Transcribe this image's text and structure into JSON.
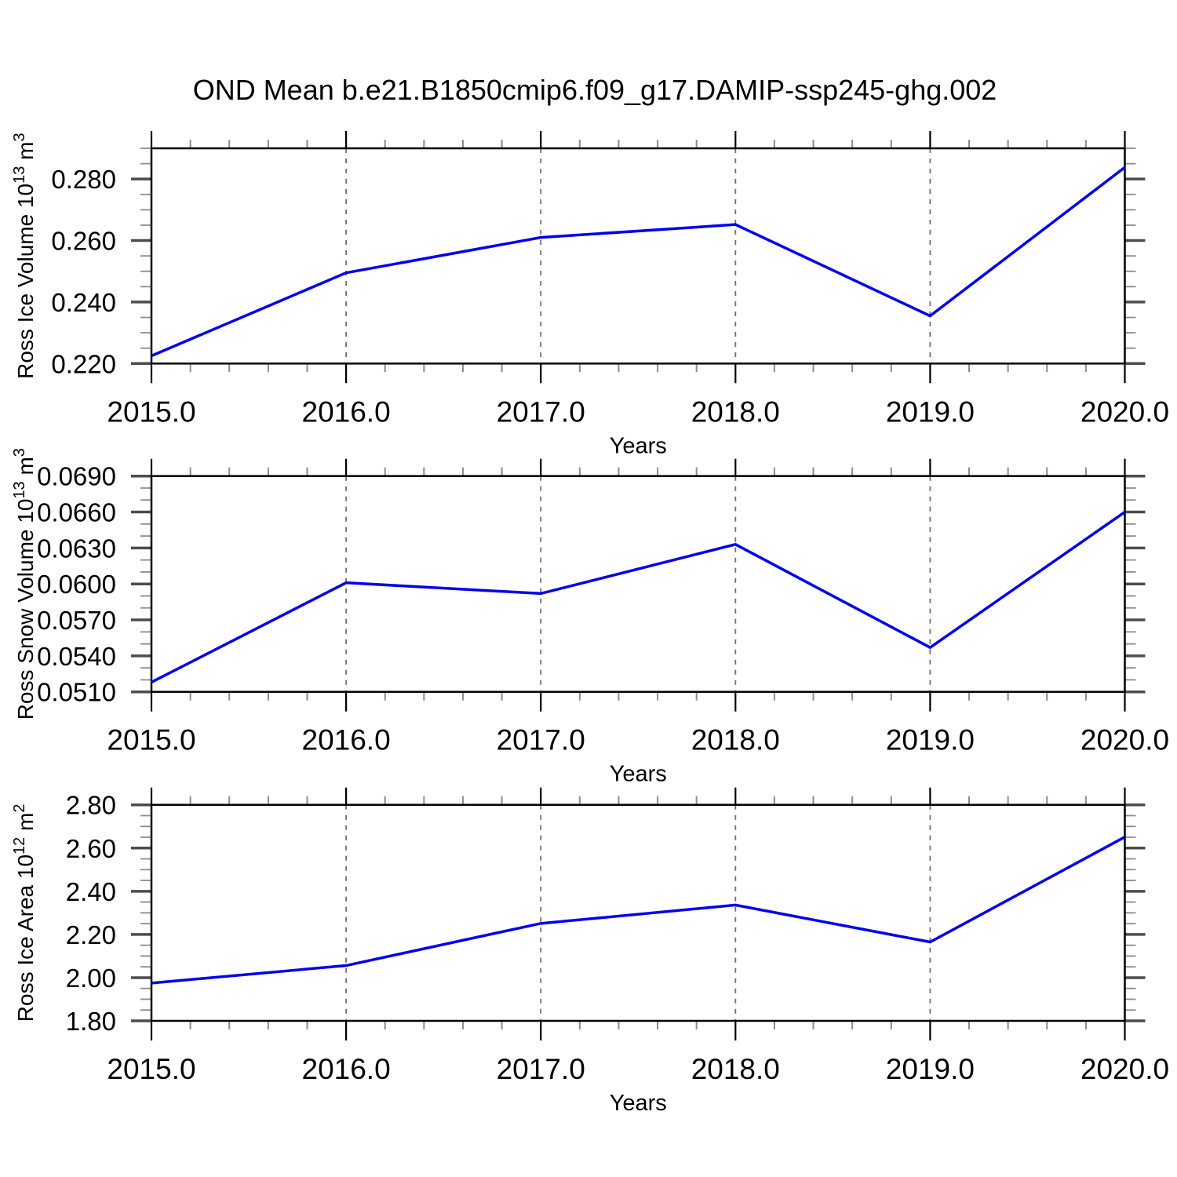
{
  "title": "OND Mean b.e21.B1850cmip6.f09_g17.DAMIP-ssp245-ghg.002",
  "colors": {
    "line": "#0000ee",
    "grid": "#707070",
    "frame": "#000000",
    "major_tick": "#4d4d4d",
    "minor_tick": "#8c8c8c",
    "text": "#000000",
    "background": "#ffffff"
  },
  "chart_data": [
    {
      "type": "line",
      "ylabel": "Ross Ice Volume 10^13 m^3",
      "ylabel_parts": [
        {
          "t": "Ross Ice Volume 10"
        },
        {
          "s": "13"
        },
        {
          "t": " m"
        },
        {
          "s": "3"
        }
      ],
      "xlabel": "Years",
      "x": [
        2015,
        2016,
        2017,
        2018,
        2019,
        2020
      ],
      "values": [
        0.2225,
        0.2495,
        0.261,
        0.2652,
        0.2355,
        0.2838
      ],
      "xlim": [
        2015,
        2020
      ],
      "ylim": [
        0.22,
        0.29
      ],
      "yticks": [
        0.22,
        0.24,
        0.26,
        0.28
      ],
      "ytick_labels": [
        "0.220",
        "0.240",
        "0.260",
        "0.280"
      ],
      "yminor_step": 0.005,
      "xtick_labels": [
        "2015.0",
        "2016.0",
        "2017.0",
        "2018.0",
        "2019.0",
        "2020.0"
      ],
      "xminor_step": 0.2,
      "grid_years": [
        2016,
        2017,
        2018,
        2019
      ],
      "grid_on": true,
      "legend": "none"
    },
    {
      "type": "line",
      "ylabel": "Ross Snow Volume 10^13 m^3",
      "ylabel_parts": [
        {
          "t": "Ross Snow Volume 10"
        },
        {
          "s": "13"
        },
        {
          "t": " m"
        },
        {
          "s": "3"
        }
      ],
      "xlabel": "Years",
      "x": [
        2015,
        2016,
        2017,
        2018,
        2019,
        2020
      ],
      "values": [
        0.0518,
        0.0601,
        0.0592,
        0.0633,
        0.0547,
        0.066
      ],
      "xlim": [
        2015,
        2020
      ],
      "ylim": [
        0.051,
        0.069
      ],
      "yticks": [
        0.051,
        0.054,
        0.057,
        0.06,
        0.063,
        0.066,
        0.069
      ],
      "ytick_labels": [
        "0.0510",
        "0.0540",
        "0.0570",
        "0.0600",
        "0.0630",
        "0.0660",
        "0.0690"
      ],
      "yminor_step": 0.001,
      "xtick_labels": [
        "2015.0",
        "2016.0",
        "2017.0",
        "2018.0",
        "2019.0",
        "2020.0"
      ],
      "xminor_step": 0.2,
      "grid_years": [
        2016,
        2017,
        2018,
        2019
      ],
      "grid_on": true,
      "legend": "none"
    },
    {
      "type": "line",
      "ylabel": "Ross Ice Area 10^12 m^2",
      "ylabel_parts": [
        {
          "t": "Ross Ice Area 10"
        },
        {
          "s": "12"
        },
        {
          "t": " m"
        },
        {
          "s": "2"
        }
      ],
      "xlabel": "Years",
      "x": [
        2015,
        2016,
        2017,
        2018,
        2019,
        2020
      ],
      "values": [
        1.975,
        2.056,
        2.251,
        2.336,
        2.165,
        2.651
      ],
      "xlim": [
        2015,
        2020
      ],
      "ylim": [
        1.8,
        2.8
      ],
      "yticks": [
        1.8,
        2.0,
        2.2,
        2.4,
        2.6,
        2.8
      ],
      "ytick_labels": [
        "1.80",
        "2.00",
        "2.20",
        "2.40",
        "2.60",
        "2.80"
      ],
      "yminor_step": 0.05,
      "xtick_labels": [
        "2015.0",
        "2016.0",
        "2017.0",
        "2018.0",
        "2019.0",
        "2020.0"
      ],
      "xminor_step": 0.2,
      "grid_years": [
        2016,
        2017,
        2018,
        2019
      ],
      "grid_on": true,
      "legend": "none"
    }
  ]
}
